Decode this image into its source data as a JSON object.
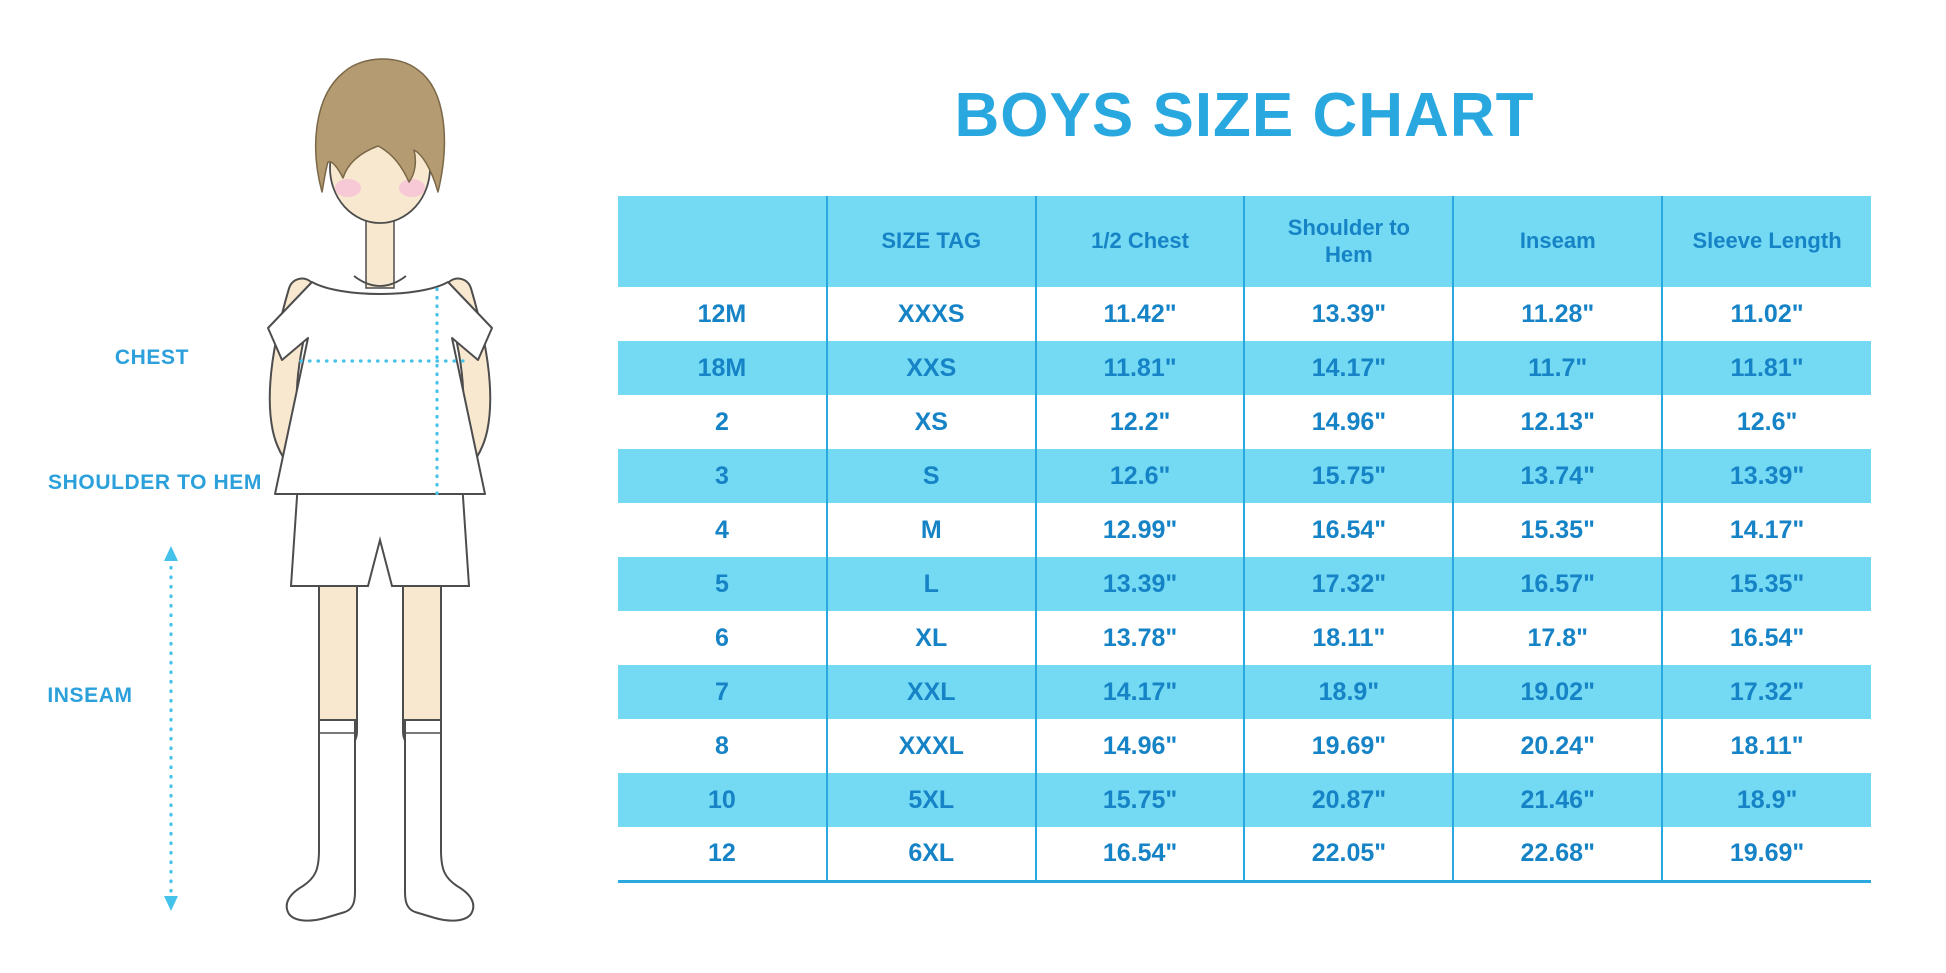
{
  "title": "BOYS SIZE CHART",
  "figure": {
    "labels": {
      "chest": "CHEST",
      "shoulder_to_hem": "SHOULDER TO HEM",
      "inseam": "INSEAM"
    }
  },
  "colors": {
    "accent_cyan": "#74D9F2",
    "title_blue": "#29A8E0",
    "text_blue": "#1583C6",
    "border_blue": "#29A9DF",
    "label_blue": "#2BA0DB",
    "measure_line_cyan": "#45C2EA"
  },
  "chart_data": {
    "type": "table",
    "title": "BOYS SIZE CHART",
    "columns": [
      "",
      "SIZE TAG",
      "1/2 Chest",
      "Shoulder to Hem",
      "Inseam",
      "Sleeve Length"
    ],
    "rows": [
      [
        "12M",
        "XXXS",
        "11.42\"",
        "13.39\"",
        "11.28\"",
        "11.02\""
      ],
      [
        "18M",
        "XXS",
        "11.81\"",
        "14.17\"",
        "11.7\"",
        "11.81\""
      ],
      [
        "2",
        "XS",
        "12.2\"",
        "14.96\"",
        "12.13\"",
        "12.6\""
      ],
      [
        "3",
        "S",
        "12.6\"",
        "15.75\"",
        "13.74\"",
        "13.39\""
      ],
      [
        "4",
        "M",
        "12.99\"",
        "16.54\"",
        "15.35\"",
        "14.17\""
      ],
      [
        "5",
        "L",
        "13.39\"",
        "17.32\"",
        "16.57\"",
        "15.35\""
      ],
      [
        "6",
        "XL",
        "13.78\"",
        "18.11\"",
        "17.8\"",
        "16.54\""
      ],
      [
        "7",
        "XXL",
        "14.17\"",
        "18.9\"",
        "19.02\"",
        "17.32\""
      ],
      [
        "8",
        "XXXL",
        "14.96\"",
        "19.69\"",
        "20.24\"",
        "18.11\""
      ],
      [
        "10",
        "5XL",
        "15.75\"",
        "20.87\"",
        "21.46\"",
        "18.9\""
      ],
      [
        "12",
        "6XL",
        "16.54\"",
        "22.05\"",
        "22.68\"",
        "19.69\""
      ]
    ]
  }
}
